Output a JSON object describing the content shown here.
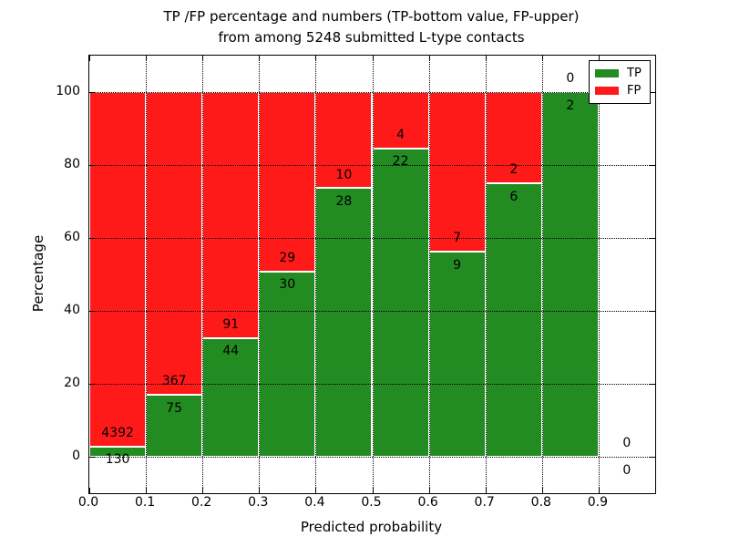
{
  "chart_data": {
    "type": "bar",
    "stacked": true,
    "normalized": "each bin stacked to 100%",
    "title_line1": "TP /FP percentage and numbers (TP-bottom value, FP-upper)",
    "title_line2": "from among 5248 submitted L-type contacts",
    "xlabel": "Predicted probability",
    "ylabel": "Percentage",
    "bin_width": 0.1,
    "bin_starts": [
      0.0,
      0.1,
      0.2,
      0.3,
      0.4,
      0.5,
      0.6,
      0.7,
      0.8,
      0.9
    ],
    "series": [
      {
        "name": "TP",
        "color": "#228B22",
        "counts": [
          130,
          75,
          44,
          30,
          28,
          22,
          9,
          6,
          2,
          0
        ]
      },
      {
        "name": "FP",
        "color": "#FF1A1A",
        "counts": [
          4392,
          367,
          91,
          29,
          10,
          4,
          7,
          2,
          0,
          0
        ]
      }
    ],
    "annotation_rule": "FP count printed just above TP/FP boundary, TP count just below",
    "xlim": [
      0.0,
      1.0
    ],
    "ylim": [
      -10,
      110
    ],
    "xtick_values": [
      0.0,
      0.1,
      0.2,
      0.3,
      0.4,
      0.5,
      0.6,
      0.7,
      0.8,
      0.9
    ],
    "xtick_labels": [
      "0.0",
      "0.1",
      "0.2",
      "0.3",
      "0.4",
      "0.5",
      "0.6",
      "0.7",
      "0.8",
      "0.9"
    ],
    "ytick_values": [
      0,
      20,
      40,
      60,
      80,
      100
    ],
    "ytick_labels": [
      "0",
      "20",
      "40",
      "60",
      "80",
      "100"
    ],
    "grid": {
      "style": "dotted",
      "color": "#000000",
      "axes": "both",
      "on_top": true
    },
    "legend": {
      "position": "upper right",
      "items": [
        {
          "label": "TP",
          "color": "#228B22"
        },
        {
          "label": "FP",
          "color": "#FF1A1A"
        }
      ]
    },
    "background": "#ffffff",
    "bar_edge_color": "#ffffff"
  }
}
